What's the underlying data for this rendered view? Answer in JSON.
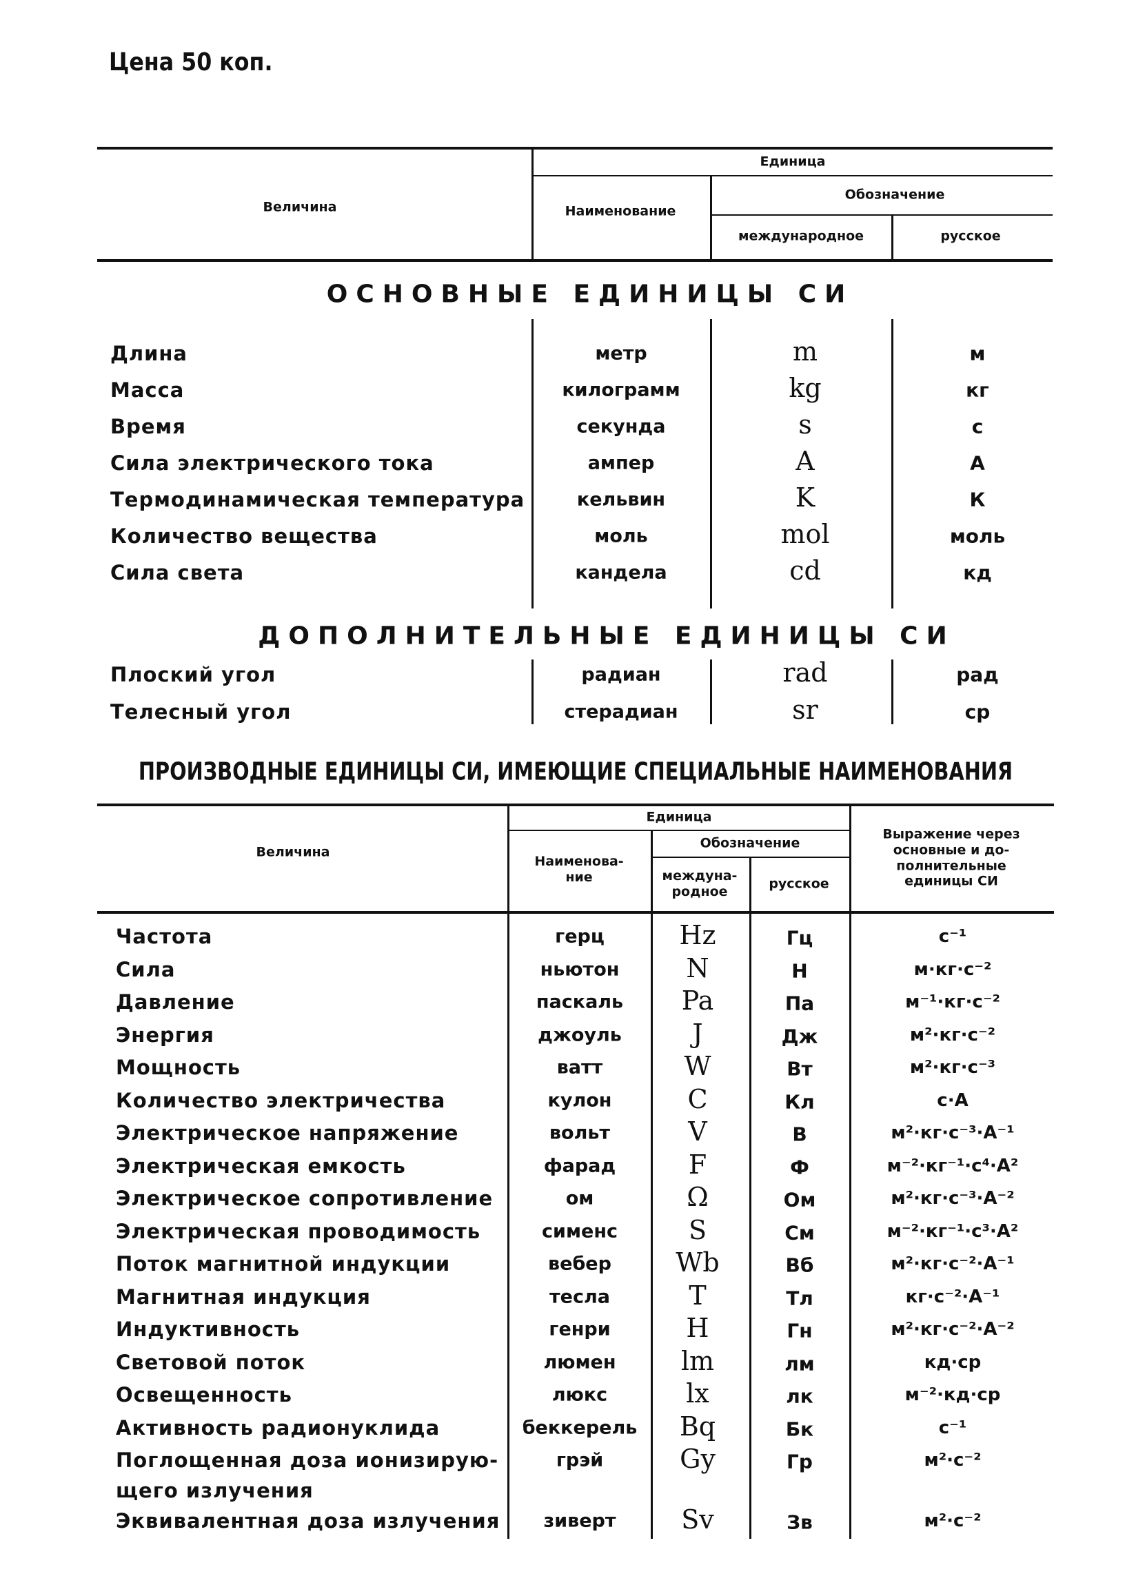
{
  "price": "Цена 50 коп.",
  "table1": {
    "headers": {
      "quantity": "Величина",
      "unit": "Единица",
      "name": "Наименование",
      "designation": "Обозначение",
      "international": "международное",
      "russian": "русское"
    },
    "base_title": "ОСНОВНЫЕ ЕДИНИЦЫ СИ",
    "base_rows": [
      {
        "quantity": "Длина",
        "name": "метр",
        "intl": "m",
        "rus": "м"
      },
      {
        "quantity": "Масса",
        "name": "килограмм",
        "intl": "kg",
        "rus": "кг"
      },
      {
        "quantity": "Время",
        "name": "секунда",
        "intl": "s",
        "rus": "с"
      },
      {
        "quantity": "Сила электрического тока",
        "name": "ампер",
        "intl": "A",
        "rus": "А"
      },
      {
        "quantity": "Термодинамическая температура",
        "name": "кельвин",
        "intl": "K",
        "rus": "К"
      },
      {
        "quantity": "Количество вещества",
        "name": "моль",
        "intl": "mol",
        "rus": "моль"
      },
      {
        "quantity": "Сила света",
        "name": "кандела",
        "intl": "cd",
        "rus": "кд"
      }
    ],
    "supp_title": "ДОПОЛНИТЕЛЬНЫЕ ЕДИНИЦЫ СИ",
    "supp_rows": [
      {
        "quantity": "Плоский угол",
        "name": "радиан",
        "intl": "rad",
        "rus": "рад"
      },
      {
        "quantity": "Телесный угол",
        "name": "стерадиан",
        "intl": "sr",
        "rus": "ср"
      }
    ]
  },
  "derived_title": "ПРОИЗВОДНЫЕ ЕДИНИЦЫ СИ, ИМЕЮЩИЕ СПЕЦИАЛЬНЫЕ НАИМЕНОВАНИЯ",
  "table2": {
    "headers": {
      "quantity": "Величина",
      "unit": "Единица",
      "name": "Наименова-\nние",
      "designation": "Обозначение",
      "international": "междуна-\nродное",
      "russian": "русское",
      "expression": "Выражение через\nосновные и до-\nполнительные\nединицы СИ"
    },
    "rows": [
      {
        "quantity": "Частота",
        "name": "герц",
        "intl": "Hz",
        "rus": "Гц",
        "expr": "с⁻¹"
      },
      {
        "quantity": "Сила",
        "name": "ньютон",
        "intl": "N",
        "rus": "Н",
        "expr": "м·кг·с⁻²"
      },
      {
        "quantity": "Давление",
        "name": "паскаль",
        "intl": "Pa",
        "rus": "Па",
        "expr": "м⁻¹·кг·с⁻²"
      },
      {
        "quantity": "Энергия",
        "name": "джоуль",
        "intl": "J",
        "rus": "Дж",
        "expr": "м²·кг·с⁻²"
      },
      {
        "quantity": "Мощность",
        "name": "ватт",
        "intl": "W",
        "rus": "Вт",
        "expr": "м²·кг·с⁻³"
      },
      {
        "quantity": "Количество электричества",
        "name": "кулон",
        "intl": "C",
        "rus": "Кл",
        "expr": "с·А"
      },
      {
        "quantity": "Электрическое напряжение",
        "name": "вольт",
        "intl": "V",
        "rus": "В",
        "expr": "м²·кг·с⁻³·А⁻¹"
      },
      {
        "quantity": "Электрическая емкость",
        "name": "фарад",
        "intl": "F",
        "rus": "Ф",
        "expr": "м⁻²·кг⁻¹·с⁴·А²"
      },
      {
        "quantity": "Электрическое сопротивление",
        "name": "ом",
        "intl": "Ω",
        "rus": "Ом",
        "expr": "м²·кг·с⁻³·А⁻²"
      },
      {
        "quantity": "Электрическая проводимость",
        "name": "сименс",
        "intl": "S",
        "rus": "См",
        "expr": "м⁻²·кг⁻¹·с³·А²"
      },
      {
        "quantity": "Поток магнитной индукции",
        "name": "вебер",
        "intl": "Wb",
        "rus": "Вб",
        "expr": "м²·кг·с⁻²·А⁻¹"
      },
      {
        "quantity": "Магнитная индукция",
        "name": "тесла",
        "intl": "T",
        "rus": "Тл",
        "expr": "кг·с⁻²·А⁻¹"
      },
      {
        "quantity": "Индуктивность",
        "name": "генри",
        "intl": "H",
        "rus": "Гн",
        "expr": "м²·кг·с⁻²·А⁻²"
      },
      {
        "quantity": "Световой поток",
        "name": "люмен",
        "intl": "lm",
        "rus": "лм",
        "expr": "кд·ср"
      },
      {
        "quantity": "Освещенность",
        "name": "люкс",
        "intl": "lx",
        "rus": "лк",
        "expr": "м⁻²·кд·ср"
      },
      {
        "quantity": "Активность радионуклида",
        "name": "беккерель",
        "intl": "Bq",
        "rus": "Бк",
        "expr": "с⁻¹"
      },
      {
        "quantity": "Поглощенная доза ионизирую-\nщего излучения",
        "name": "грэй",
        "intl": "Gy",
        "rus": "Гр",
        "expr": "м²·с⁻²"
      },
      {
        "quantity": "Эквивалентная доза излучения",
        "name": "зиверт",
        "intl": "Sv",
        "rus": "Зв",
        "expr": "м²·с⁻²"
      }
    ]
  }
}
